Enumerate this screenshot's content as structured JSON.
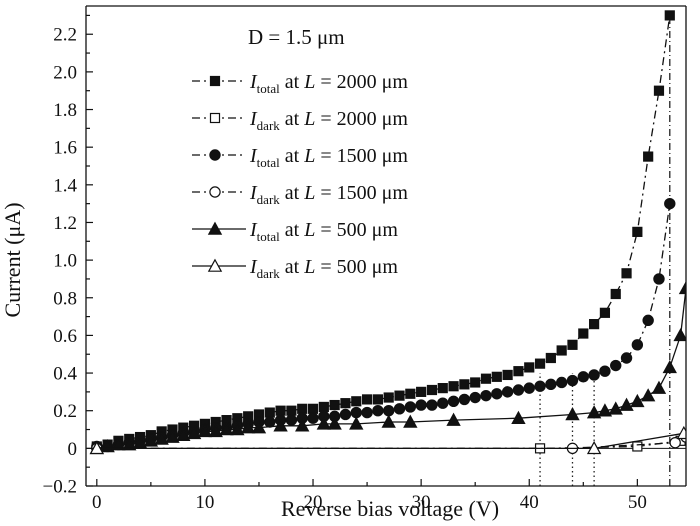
{
  "chart_data": {
    "type": "line",
    "annotation": "D = 1.5 μm",
    "xlabel": "Reverse bias voltage (V)",
    "ylabel": "Current (μA)",
    "xlim": [
      -1,
      54.5
    ],
    "ylim": [
      -0.2,
      2.35
    ],
    "x_ticks": [
      0,
      10,
      20,
      30,
      40,
      50
    ],
    "y_ticks": [
      -0.2,
      0,
      0.2,
      0.4,
      0.6,
      0.8,
      1.0,
      1.2,
      1.4,
      1.6,
      1.8,
      2.0,
      2.2
    ],
    "y_tick_labels": [
      "−0.2",
      "0",
      "0.2",
      "0.4",
      "0.6",
      "0.8",
      "1.0",
      "1.2",
      "1.4",
      "1.6",
      "1.8",
      "2.0",
      "2.2"
    ],
    "legend_position": "top-left",
    "breakdown_markers": [
      41,
      44,
      46,
      53
    ],
    "series": [
      {
        "name": "I_total at L = 2000 μm",
        "legend": {
          "sym": "I",
          "sub": "total",
          "rest": " at ",
          "var": "L",
          "val": " = 2000 μm"
        },
        "marker": "square",
        "filled": true,
        "dash": "8,4,2,4",
        "x": [
          0,
          1,
          2,
          3,
          4,
          5,
          6,
          7,
          8,
          9,
          10,
          11,
          12,
          13,
          14,
          15,
          16,
          17,
          18,
          19,
          20,
          21,
          22,
          23,
          24,
          25,
          26,
          27,
          28,
          29,
          30,
          31,
          32,
          33,
          34,
          35,
          36,
          37,
          38,
          39,
          40,
          41,
          42,
          43,
          44,
          45,
          46,
          47,
          48,
          49,
          50,
          51,
          52,
          53
        ],
        "y": [
          0.01,
          0.02,
          0.04,
          0.05,
          0.06,
          0.07,
          0.09,
          0.1,
          0.11,
          0.12,
          0.13,
          0.14,
          0.15,
          0.16,
          0.17,
          0.18,
          0.19,
          0.2,
          0.2,
          0.21,
          0.21,
          0.22,
          0.23,
          0.24,
          0.25,
          0.26,
          0.26,
          0.27,
          0.28,
          0.29,
          0.3,
          0.31,
          0.32,
          0.33,
          0.34,
          0.35,
          0.37,
          0.38,
          0.39,
          0.41,
          0.43,
          0.45,
          0.48,
          0.52,
          0.55,
          0.61,
          0.66,
          0.72,
          0.82,
          0.93,
          1.15,
          1.55,
          1.9,
          2.3
        ]
      },
      {
        "name": "I_dark at L = 2000 μm",
        "legend": {
          "sym": "I",
          "sub": "dark",
          "rest": " at ",
          "var": "L",
          "val": " = 2000 μm"
        },
        "marker": "square",
        "filled": false,
        "dash": "8,4,2,4",
        "x": [
          0,
          41,
          50,
          54
        ],
        "y": [
          0,
          0,
          0.01,
          0.04
        ]
      },
      {
        "name": "I_total at L = 1500 μm",
        "legend": {
          "sym": "I",
          "sub": "total",
          "rest": " at ",
          "var": "L",
          "val": " = 1500 μm"
        },
        "marker": "circle",
        "filled": true,
        "dash": "8,4,2,4",
        "x": [
          0,
          1,
          2,
          3,
          4,
          5,
          6,
          7,
          8,
          9,
          10,
          11,
          12,
          13,
          14,
          15,
          16,
          17,
          18,
          19,
          20,
          21,
          22,
          23,
          24,
          25,
          26,
          27,
          28,
          29,
          30,
          31,
          32,
          33,
          34,
          35,
          36,
          37,
          38,
          39,
          40,
          41,
          42,
          43,
          44,
          45,
          46,
          47,
          48,
          49,
          50,
          51,
          52,
          53
        ],
        "y": [
          0.01,
          0.01,
          0.02,
          0.03,
          0.04,
          0.05,
          0.06,
          0.07,
          0.08,
          0.09,
          0.1,
          0.11,
          0.11,
          0.12,
          0.13,
          0.14,
          0.14,
          0.15,
          0.15,
          0.16,
          0.16,
          0.17,
          0.17,
          0.18,
          0.19,
          0.19,
          0.2,
          0.2,
          0.21,
          0.22,
          0.23,
          0.23,
          0.24,
          0.25,
          0.26,
          0.27,
          0.28,
          0.29,
          0.3,
          0.31,
          0.32,
          0.33,
          0.34,
          0.35,
          0.36,
          0.38,
          0.39,
          0.41,
          0.44,
          0.48,
          0.55,
          0.68,
          0.9,
          1.3
        ]
      },
      {
        "name": "I_dark at L = 1500 μm",
        "legend": {
          "sym": "I",
          "sub": "dark",
          "rest": " at ",
          "var": "L",
          "val": " = 1500 μm"
        },
        "marker": "circle",
        "filled": false,
        "dash": "8,4,2,4",
        "x": [
          0,
          44,
          53.5,
          54.5
        ],
        "y": [
          0,
          0,
          0.03,
          0.06
        ]
      },
      {
        "name": "I_total at L = 500 μm",
        "legend": {
          "sym": "I",
          "sub": "total",
          "rest": " at ",
          "var": "L",
          "val": " = 500 μm"
        },
        "marker": "triangle",
        "filled": true,
        "dash": "",
        "x": [
          0,
          1,
          2,
          3,
          4,
          5,
          6,
          7,
          8,
          9,
          10,
          11,
          12,
          13,
          14,
          15,
          17,
          19,
          21,
          22,
          24,
          27,
          29,
          33,
          39,
          44,
          46,
          47,
          48,
          49,
          50,
          51,
          52,
          53,
          54,
          54.5
        ],
        "y": [
          0,
          0.01,
          0.02,
          0.02,
          0.03,
          0.04,
          0.05,
          0.06,
          0.07,
          0.08,
          0.09,
          0.09,
          0.1,
          0.1,
          0.11,
          0.11,
          0.12,
          0.12,
          0.13,
          0.13,
          0.13,
          0.14,
          0.14,
          0.15,
          0.16,
          0.18,
          0.19,
          0.2,
          0.21,
          0.23,
          0.25,
          0.28,
          0.32,
          0.43,
          0.6,
          0.85
        ]
      },
      {
        "name": "I_dark at L = 500 μm",
        "legend": {
          "sym": "I",
          "sub": "dark",
          "rest": " at ",
          "var": "L",
          "val": " = 500 μm"
        },
        "marker": "triangle",
        "filled": false,
        "dash": "",
        "x": [
          0,
          46,
          54.3
        ],
        "y": [
          0,
          0,
          0.08
        ]
      }
    ]
  }
}
